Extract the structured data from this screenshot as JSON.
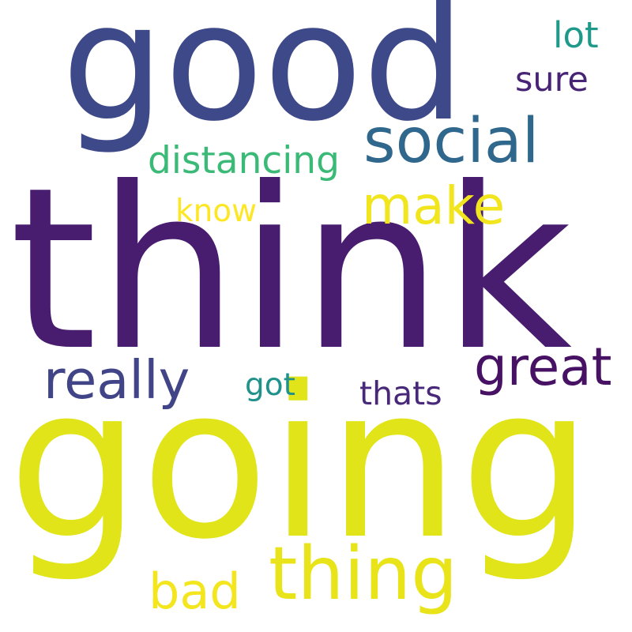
{
  "words": {
    "think": {
      "text": "think",
      "color": "#481c6e"
    },
    "going": {
      "text": "going",
      "color": "#e0e418"
    },
    "good": {
      "text": "good",
      "color": "#3e4989"
    },
    "social": {
      "text": "social",
      "color": "#30678d"
    },
    "thing": {
      "text": "thing",
      "color": "#e8e419"
    },
    "really": {
      "text": "really",
      "color": "#414487"
    },
    "great": {
      "text": "great",
      "color": "#471164"
    },
    "make": {
      "text": "make",
      "color": "#f1e51d"
    },
    "distancing": {
      "text": "distancing",
      "color": "#3aba76"
    },
    "bad": {
      "text": "bad",
      "color": "#f4e61e"
    },
    "lot": {
      "text": "lot",
      "color": "#1f9a8a"
    },
    "sure": {
      "text": "sure",
      "color": "#482475"
    },
    "thats": {
      "text": "thats",
      "color": "#482878"
    },
    "got": {
      "text": "got",
      "color": "#21918c"
    },
    "know": {
      "text": "know",
      "color": "#fde725"
    }
  }
}
